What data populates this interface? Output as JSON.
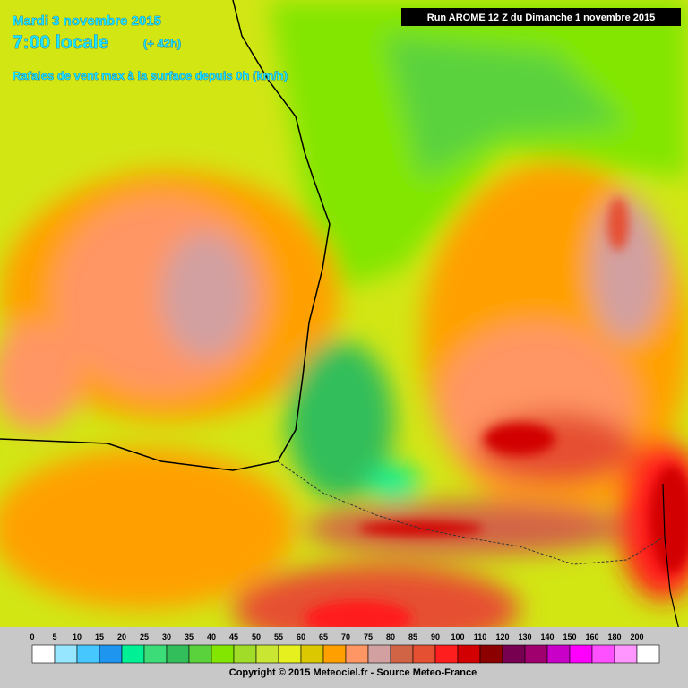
{
  "header": {
    "date": "Mardi 3 novembre 2015",
    "time": "7:00 locale",
    "lead": "(+ 42h)",
    "subtitle": "Rafales de vent max à la surface depuis 0h (km/h)",
    "run": "Run AROME 12 Z du Dimanche 1 novembre 2015"
  },
  "legend": {
    "values": [
      0,
      5,
      10,
      15,
      20,
      25,
      30,
      35,
      40,
      45,
      50,
      55,
      60,
      65,
      70,
      75,
      80,
      85,
      90,
      100,
      110,
      120,
      130,
      140,
      150,
      160,
      180,
      200
    ],
    "colors": [
      "#ffffff",
      "#96e6ff",
      "#46c8ff",
      "#1e96f0",
      "#00f096",
      "#3cdc78",
      "#32be5a",
      "#5ad23c",
      "#82e600",
      "#a0dc28",
      "#c8e632",
      "#e6f01e",
      "#dcc800",
      "#ffa000",
      "#ff9664",
      "#d2a0a0",
      "#d26446",
      "#e65032",
      "#ff1e1e",
      "#d20000",
      "#8c0000",
      "#780050",
      "#a0006e",
      "#c800c8",
      "#ff00ff",
      "#ff50ff",
      "#ff96ff",
      "#ffffff"
    ]
  },
  "footer": {
    "copyright": "Copyright © 2015 Meteociel.fr - Source Meteo-France"
  }
}
